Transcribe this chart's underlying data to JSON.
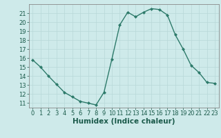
{
  "x": [
    0,
    1,
    2,
    3,
    4,
    5,
    6,
    7,
    8,
    9,
    10,
    11,
    12,
    13,
    14,
    15,
    16,
    17,
    18,
    19,
    20,
    21,
    22,
    23
  ],
  "y": [
    15.8,
    15.0,
    14.0,
    13.1,
    12.2,
    11.7,
    11.2,
    11.0,
    10.8,
    12.2,
    15.9,
    19.7,
    21.1,
    20.6,
    21.1,
    21.5,
    21.4,
    20.8,
    18.6,
    17.0,
    15.2,
    14.4,
    13.3,
    13.2
  ],
  "line_color": "#2d7a6a",
  "marker": "D",
  "markersize": 2.0,
  "linewidth": 1.0,
  "bg_color": "#ceeaea",
  "grid_color": "#b8d8d8",
  "xlabel": "Humidex (Indice chaleur)",
  "xlabel_fontsize": 7.5,
  "tick_fontsize": 6.0,
  "ylim": [
    10.5,
    22.0
  ],
  "xlim": [
    -0.5,
    23.5
  ],
  "yticks": [
    11,
    12,
    13,
    14,
    15,
    16,
    17,
    18,
    19,
    20,
    21
  ],
  "xticks": [
    0,
    1,
    2,
    3,
    4,
    5,
    6,
    7,
    8,
    9,
    10,
    11,
    12,
    13,
    14,
    15,
    16,
    17,
    18,
    19,
    20,
    21,
    22,
    23
  ]
}
